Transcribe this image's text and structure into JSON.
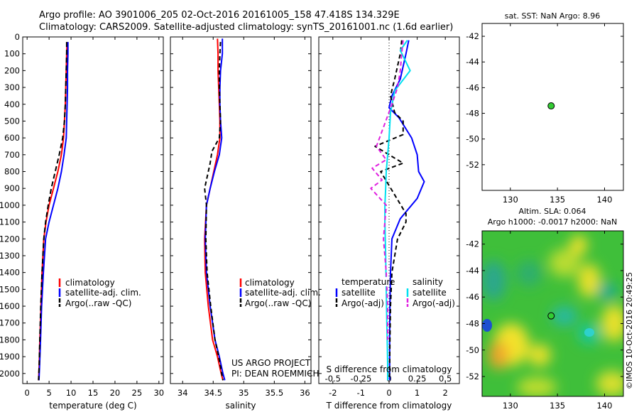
{
  "header": {
    "line1": "Argo profile: AO 3901006_205 02-Oct-2016 20161005_158 47.418S 134.329E",
    "line2": "Climatology: CARS2009. Satellite-adjusted climatology: synTS_20161001.nc (1.6d earlier)"
  },
  "colors": {
    "climatology": "#ff0000",
    "satellite": "#0000ff",
    "argo": "#000000",
    "s_satellite": "#00e0f0",
    "s_argo": "#e020e0",
    "marker": "#33cc33"
  },
  "chart_data": [
    {
      "id": "temperature",
      "type": "line",
      "xlabel": "temperature (deg C)",
      "ylabel": "",
      "xlim": [
        -1,
        31
      ],
      "ylim": [
        2060,
        0
      ],
      "xticks": [
        0,
        5,
        10,
        15,
        20,
        25,
        30
      ],
      "yticks": [
        0,
        100,
        200,
        300,
        400,
        500,
        600,
        700,
        800,
        900,
        1000,
        1100,
        1200,
        1300,
        1400,
        1500,
        1600,
        1700,
        1800,
        1900,
        2000
      ],
      "legend": [
        "climatology",
        "satellite-adj. clim.",
        "Argo(..raw -QC)"
      ],
      "series": [
        {
          "name": "climatology",
          "color": "#ff0000",
          "dash": "",
          "x": [
            9.1,
            9.0,
            8.9,
            8.8,
            8.7,
            8.5,
            8.3,
            7.8,
            7.0,
            6.0,
            5.0,
            4.3,
            3.8,
            3.4,
            3.15,
            2.9,
            2.75,
            2.6
          ],
          "y": [
            30,
            100,
            200,
            300,
            400,
            500,
            600,
            700,
            800,
            900,
            1000,
            1100,
            1200,
            1400,
            1600,
            1800,
            1950,
            2040
          ]
        },
        {
          "name": "satellite-adj. clim.",
          "color": "#0000ff",
          "dash": "",
          "x": [
            9.3,
            9.3,
            9.2,
            9.2,
            9.1,
            9.0,
            8.9,
            8.4,
            7.8,
            7.0,
            6.0,
            5.0,
            4.2,
            3.7,
            3.3,
            3.05,
            2.85,
            2.7
          ],
          "y": [
            30,
            100,
            200,
            300,
            400,
            500,
            600,
            700,
            800,
            900,
            1000,
            1100,
            1200,
            1400,
            1600,
            1800,
            1950,
            2040
          ]
        },
        {
          "name": "Argo(..raw -QC)",
          "color": "#000000",
          "dash": "7,4",
          "x": [
            9.0,
            9.0,
            8.9,
            8.8,
            8.7,
            8.5,
            8.1,
            7.3,
            6.4,
            5.5,
            4.8,
            4.2,
            3.8,
            3.4,
            3.1,
            2.9,
            2.75,
            2.6
          ],
          "y": [
            30,
            100,
            200,
            300,
            400,
            500,
            600,
            700,
            800,
            900,
            1000,
            1100,
            1200,
            1400,
            1600,
            1800,
            1950,
            2040
          ]
        }
      ]
    },
    {
      "id": "salinity",
      "type": "line",
      "xlabel": "salinity",
      "xlim": [
        33.8,
        36.1
      ],
      "ylim": [
        2060,
        0
      ],
      "xticks": [
        34,
        34.5,
        35,
        35.5,
        36
      ],
      "legend": [
        "climatology",
        "satellite-adj. clim.",
        "Argo(..raw -QC)"
      ],
      "annotation": [
        "US ARGO PROJECT",
        "PI: DEAN ROEMMICH"
      ],
      "series": [
        {
          "name": "climatology",
          "color": "#ff0000",
          "dash": "",
          "x": [
            34.57,
            34.58,
            34.58,
            34.59,
            34.6,
            34.61,
            34.61,
            34.57,
            34.51,
            34.45,
            34.39,
            34.36,
            34.37,
            34.42,
            34.49,
            34.57,
            34.63,
            34.66
          ],
          "y": [
            10,
            100,
            200,
            300,
            400,
            500,
            600,
            700,
            800,
            900,
            1000,
            1200,
            1400,
            1600,
            1800,
            1900,
            2000,
            2040
          ]
        },
        {
          "name": "satellite-adj. clim.",
          "color": "#0000ff",
          "dash": "",
          "x": [
            34.65,
            34.65,
            34.62,
            34.61,
            34.61,
            34.62,
            34.64,
            34.6,
            34.52,
            34.45,
            34.39,
            34.37,
            34.39,
            34.45,
            34.53,
            34.6,
            34.66,
            34.69
          ],
          "y": [
            10,
            100,
            200,
            300,
            400,
            500,
            600,
            700,
            800,
            900,
            1000,
            1200,
            1400,
            1600,
            1800,
            1900,
            2000,
            2040
          ]
        },
        {
          "name": "Argo(..raw -QC)",
          "color": "#000000",
          "dash": "6,4",
          "x": [
            34.62,
            34.61,
            34.6,
            34.6,
            34.61,
            34.62,
            34.6,
            34.48,
            34.45,
            34.36,
            34.39,
            34.38,
            34.4,
            34.46,
            34.53,
            34.59,
            34.64,
            34.66
          ],
          "y": [
            30,
            100,
            200,
            300,
            400,
            500,
            600,
            680,
            750,
            900,
            1000,
            1200,
            1400,
            1600,
            1800,
            1900,
            2000,
            2040
          ]
        }
      ]
    },
    {
      "id": "difference",
      "type": "line",
      "xlabel": "T difference from climatology",
      "xlabel_top": "S difference from climatology",
      "xlim": [
        -2.5,
        2.5
      ],
      "ylim": [
        2060,
        0
      ],
      "xticks": [
        -2,
        -1,
        0,
        1,
        2
      ],
      "xticks_s": [
        "-0.5",
        "-0.25",
        "0",
        "0.25",
        "0.5"
      ],
      "legend_t_title": "temperature",
      "legend_s_title": "salinity",
      "legend": [
        "satellite",
        "Argo(-adj)",
        "satellite",
        "Argo(-adj)"
      ],
      "series": [
        {
          "name": "T satellite",
          "color": "#0000ff",
          "dash": "",
          "x": [
            0.7,
            0.6,
            0.4,
            0.1,
            0.0,
            0.35,
            0.8,
            1.0,
            1.05,
            1.25,
            1.0,
            0.4,
            0.1,
            0.05,
            0.03,
            0.02,
            0.02,
            0.02
          ],
          "y": [
            20,
            100,
            250,
            350,
            420,
            480,
            600,
            700,
            800,
            860,
            960,
            1080,
            1200,
            1400,
            1600,
            1800,
            1950,
            2040
          ]
        },
        {
          "name": "T Argo(-adj)",
          "color": "#000000",
          "dash": "6,4",
          "x": [
            0.45,
            0.4,
            0.2,
            0.05,
            0.2,
            0.5,
            0.5,
            -0.5,
            0.5,
            -0.3,
            0.6,
            0.6,
            0.3,
            0.1,
            0.05,
            0.03,
            0.02,
            0.01
          ],
          "y": [
            20,
            100,
            250,
            350,
            450,
            500,
            580,
            650,
            750,
            800,
            1050,
            1100,
            1200,
            1400,
            1600,
            1800,
            1950,
            2040
          ]
        },
        {
          "name": "S satellite",
          "color": "#00e0f0",
          "dash": "",
          "x": [
            0.65,
            0.4,
            0.75,
            0.2,
            0.05,
            0.0,
            -0.05,
            -0.1,
            -0.12,
            -0.15,
            -0.15,
            -0.12,
            -0.1,
            -0.08,
            -0.06,
            -0.05,
            -0.05
          ],
          "y": [
            20,
            80,
            200,
            320,
            450,
            600,
            700,
            800,
            900,
            1000,
            1100,
            1300,
            1500,
            1700,
            1850,
            1950,
            2040
          ]
        },
        {
          "name": "S Argo(-adj)",
          "color": "#e020e0",
          "dash": "6,4",
          "x": [
            0.5,
            0.45,
            0.4,
            0.3,
            0.1,
            -0.45,
            -0.1,
            -0.6,
            -0.25,
            -0.65,
            -0.1,
            -0.2,
            -0.1,
            -0.05,
            -0.05
          ],
          "y": [
            20,
            100,
            200,
            300,
            400,
            650,
            730,
            780,
            850,
            900,
            1000,
            1200,
            1400,
            1600,
            1800
          ]
        }
      ]
    },
    {
      "id": "sst_map",
      "type": "scatter",
      "title": "sat. SST: NaN Argo: 8.96",
      "xlim": [
        127,
        142
      ],
      "ylim": [
        -54,
        -41
      ],
      "xticks": [
        130,
        135,
        140
      ],
      "yticks": [
        -42,
        -44,
        -46,
        -48,
        -50,
        -52
      ],
      "points": [
        {
          "x": 134.33,
          "y": -47.42
        }
      ]
    },
    {
      "id": "sla_map",
      "type": "heatmap",
      "title_line1": "Altim. SLA: 0.064",
      "title_line2": "Argo h1000: -0.0017 h2000: NaN",
      "xlim": [
        127,
        142
      ],
      "ylim": [
        -53.5,
        -41
      ],
      "xticks": [
        130,
        135,
        140
      ],
      "yticks": [
        -42,
        -44,
        -46,
        -48,
        -50,
        -52
      ],
      "points": [
        {
          "x": 134.33,
          "y": -47.42
        }
      ],
      "side_text": "©IMOS 10-Oct-2016 20:49:25"
    }
  ]
}
